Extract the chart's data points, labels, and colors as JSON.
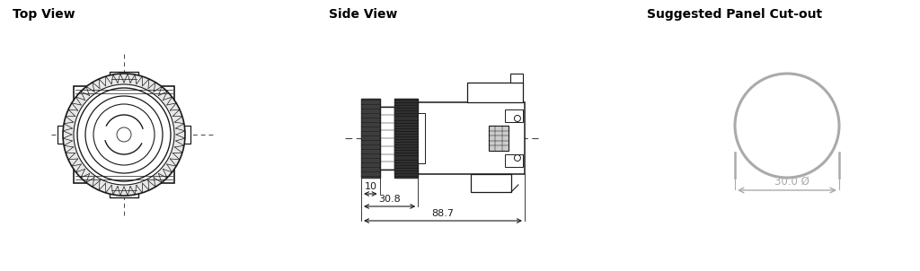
{
  "title_top_view": "Top View",
  "title_side_view": "Side View",
  "title_cutout": "Suggested Panel Cut-out",
  "dim_10": "10",
  "dim_30_8": "30.8",
  "dim_88_7": "88.7",
  "dim_diameter": "30.0 Ø",
  "line_color": "#1a1a1a",
  "dim_color": "#1a1a1a",
  "dashed_color": "#444444",
  "cutout_color": "#aaaaaa",
  "bg_color": "#ffffff",
  "title_fontsize": 10,
  "dim_fontsize": 8
}
